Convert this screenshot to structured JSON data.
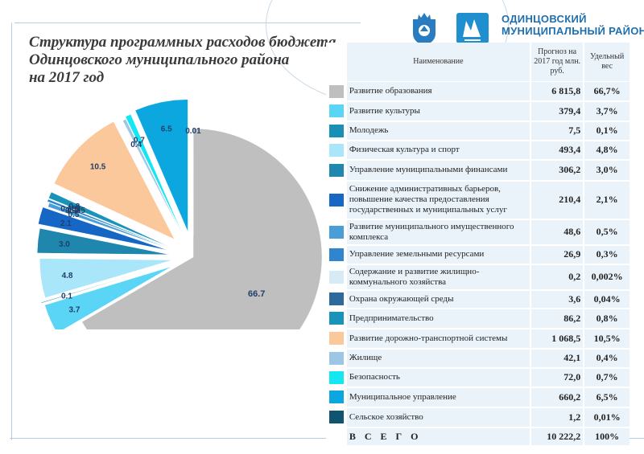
{
  "title_lines": [
    "Структура программных расходов бюджета",
    "Одинцовского муниципального района",
    "на 2017 год"
  ],
  "logo": {
    "line1": "ОДИНЦОВСКИЙ",
    "line2": "МУНИЦИПАЛЬНЫЙ РАЙОН"
  },
  "table": {
    "header": {
      "name": "Наименование",
      "forecast": "Прогноз на 2017 год млн. руб.",
      "share": "Удельный вес"
    },
    "rows": [
      {
        "name": "Развитие образования",
        "forecast": "6 815,8",
        "share": "66,7%",
        "color": "#bfbfbf"
      },
      {
        "name": "Развитие культуры",
        "forecast": "379,4",
        "share": "3,7%",
        "color": "#5ad5f5"
      },
      {
        "name": "Молодежь",
        "forecast": "7,5",
        "share": "0,1%",
        "color": "#1a8fb5"
      },
      {
        "name": "Физическая культура и спорт",
        "forecast": "493,4",
        "share": "4,8%",
        "color": "#a9e6fa"
      },
      {
        "name": "Управление муниципальными финансами",
        "forecast": "306,2",
        "share": "3,0%",
        "color": "#1f86ae"
      },
      {
        "name": "Снижение административных барьеров, повышение качества предоставления государственных и муниципальных услуг",
        "forecast": "210,4",
        "share": "2,1%",
        "color": "#1667c5"
      },
      {
        "name": "Развитие муниципального имущественного комплекса",
        "forecast": "48,6",
        "share": "0,5%",
        "color": "#4a9ed8"
      },
      {
        "name": "Управление земельными ресурсами",
        "forecast": "26,9",
        "share": "0,3%",
        "color": "#2f86cf"
      },
      {
        "name": "Содержание и развитие жилищно-коммунального хозяйства",
        "forecast": "0,2",
        "share": "0,002%",
        "color": "#d6ebf5"
      },
      {
        "name": "Охрана окружающей среды",
        "forecast": "3,6",
        "share": "0,04%",
        "color": "#2c6a9e"
      },
      {
        "name": "Предпринимательство",
        "forecast": "86,2",
        "share": "0,8%",
        "color": "#1a93b8"
      },
      {
        "name": "Развитие дорожно-транспортной системы",
        "forecast": "1 068,5",
        "share": "10,5%",
        "color": "#fbc89c"
      },
      {
        "name": "Жилище",
        "forecast": "42,1",
        "share": "0,4%",
        "color": "#9cc6e4"
      },
      {
        "name": "Безопасность",
        "forecast": "72,0",
        "share": "0,7%",
        "color": "#14e6f2"
      },
      {
        "name": "Муниципальное управление",
        "forecast": "660,2",
        "share": "6,5%",
        "color": "#0da7e0"
      },
      {
        "name": "Сельское хозяйство",
        "forecast": "1,2",
        "share": "0,01%",
        "color": "#0f5570"
      }
    ],
    "total": {
      "label": "В С Е Г О",
      "forecast": "10 222,2",
      "share": "100%"
    }
  },
  "chart_data": {
    "type": "pie",
    "style": "exploded",
    "labels": [
      "Развитие образования",
      "Развитие культуры",
      "Молодежь",
      "Физическая культура и спорт",
      "Управление муниципальными финансами",
      "Снижение административных барьеров, повышение качества предоставления государственных и муниципальных услуг",
      "Развитие муниципального имущественного комплекса",
      "Управление земельными ресурсами",
      "Содержание и развитие жилищно-коммунального хозяйства",
      "Охрана окружающей среды",
      "Предпринимательство",
      "Развитие дорожно-транспортной системы",
      "Жилище",
      "Безопасность",
      "Муниципальное управление",
      "Сельское хозяйство"
    ],
    "values": [
      66.7,
      3.7,
      0.1,
      4.8,
      3.0,
      2.1,
      0.5,
      0.3,
      0.002,
      0.035,
      0.8,
      10.5,
      0.4,
      0.7,
      6.5,
      0.01
    ],
    "data_labels": [
      "66.7",
      "3.7",
      "0.1",
      "4.8",
      "3.0",
      "2.1",
      "0.5",
      "0.3",
      "0.002",
      "0.035",
      "0.8",
      "10.5",
      "0.4",
      "0.7",
      "6.5",
      "0.01"
    ],
    "colors": [
      "#bfbfbf",
      "#5ad5f5",
      "#1a8fb5",
      "#a9e6fa",
      "#1f86ae",
      "#1667c5",
      "#4a9ed8",
      "#2f86cf",
      "#d6ebf5",
      "#2c6a9e",
      "#1a93b8",
      "#fbc89c",
      "#9cc6e4",
      "#14e6f2",
      "#0da7e0",
      "#0f5570"
    ],
    "title": "",
    "legend": "table-right"
  }
}
